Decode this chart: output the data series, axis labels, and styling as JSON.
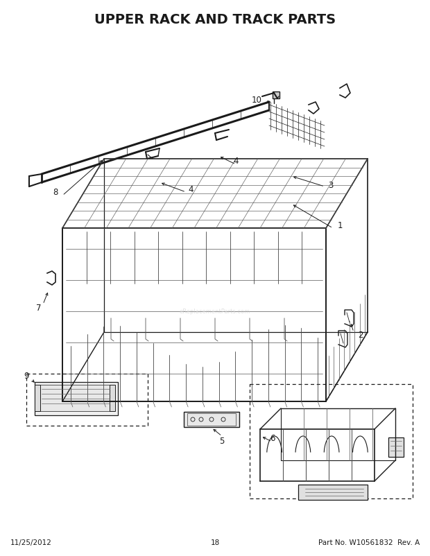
{
  "title": "UPPER RACK AND TRACK PARTS",
  "title_fontsize": 14,
  "title_fontweight": "bold",
  "footer_left": "11/25/2012",
  "footer_center": "18",
  "footer_right": "Part No. W10561832  Rev. A",
  "footer_fontsize": 7.5,
  "background_color": "#ffffff",
  "line_color": "#1a1a1a",
  "label_fontsize": 8.5
}
